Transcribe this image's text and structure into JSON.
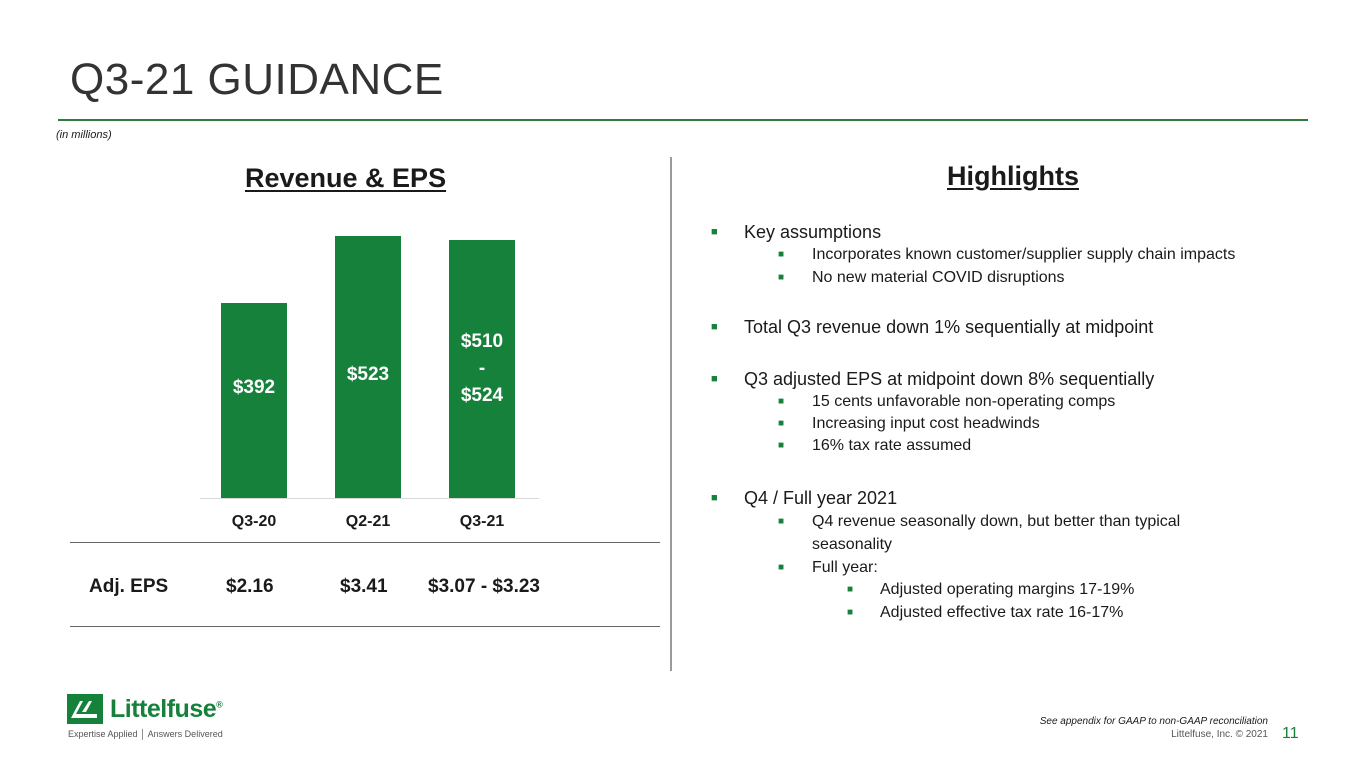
{
  "header": {
    "title": "Q3-21 GUIDANCE",
    "units": "(in millions)"
  },
  "left": {
    "heading": "Revenue & EPS",
    "eps_label": "Adj. EPS"
  },
  "chart_data": {
    "type": "bar",
    "title": "Revenue & EPS",
    "categories": [
      "Q3-20",
      "Q2-21",
      "Q3-21"
    ],
    "values": [
      392,
      523,
      517
    ],
    "value_ranges": [
      null,
      null,
      [
        510,
        524
      ]
    ],
    "data_labels": [
      "$392",
      "$523",
      "$510\n-\n$524"
    ],
    "eps": [
      "$2.16",
      "$3.41",
      "$3.07 - $3.23"
    ],
    "bar_color": "#16813b",
    "ylim": [
      0,
      530
    ]
  },
  "right": {
    "heading": "Highlights",
    "items": [
      {
        "level": 1,
        "text": "Key assumptions"
      },
      {
        "level": 2,
        "text": "Incorporates known customer/supplier supply chain impacts"
      },
      {
        "level": 2,
        "text": "No new material COVID disruptions"
      },
      {
        "level": 1,
        "text": "Total Q3 revenue down 1% sequentially at midpoint"
      },
      {
        "level": 1,
        "text": "Q3 adjusted EPS at midpoint down 8% sequentially"
      },
      {
        "level": 2,
        "text": "15 cents unfavorable non-operating comps"
      },
      {
        "level": 2,
        "text": "Increasing input cost headwinds"
      },
      {
        "level": 2,
        "text": "16% tax rate assumed"
      },
      {
        "level": 1,
        "text": "Q4 / Full year 2021"
      },
      {
        "level": 2,
        "text": "Q4 revenue seasonally down, but better than typical"
      },
      {
        "level": 2,
        "text": "seasonality",
        "continuation": true
      },
      {
        "level": 2,
        "text": "Full year:"
      },
      {
        "level": 3,
        "text": "Adjusted operating margins 17-19%"
      },
      {
        "level": 3,
        "text": "Adjusted effective tax rate 16-17%"
      }
    ],
    "bullet_glyph": "■"
  },
  "footer": {
    "logo_text": "Littelfuse",
    "logo_mark": "®",
    "tagline": "Expertise Applied │ Answers Delivered",
    "footnote": "See appendix for GAAP to non-GAAP reconciliation",
    "copyright": "Littelfuse, Inc. © 2021",
    "page": "11"
  },
  "colors": {
    "brand_green": "#16813b",
    "rule_green": "#2e7d3e"
  }
}
